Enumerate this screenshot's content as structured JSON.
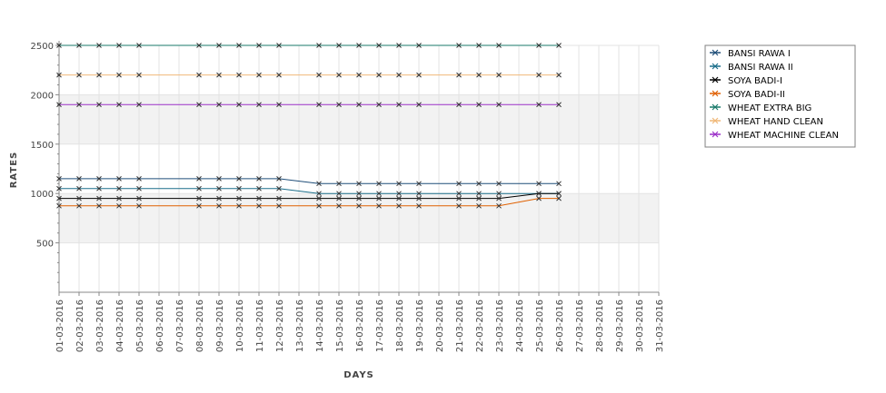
{
  "chart_data": {
    "type": "line",
    "title": "",
    "xlabel": "DAYS",
    "ylabel": "RATES",
    "ylim": [
      0,
      2500
    ],
    "yticks": [
      500,
      1000,
      1500,
      2000,
      2500
    ],
    "grid": true,
    "legend_position": "right",
    "categories": [
      "01-03-2016",
      "02-03-2016",
      "03-03-2016",
      "04-03-2016",
      "05-03-2016",
      "06-03-2016",
      "07-03-2016",
      "08-03-2016",
      "09-03-2016",
      "10-03-2016",
      "11-03-2016",
      "12-03-2016",
      "13-03-2016",
      "14-03-2016",
      "15-03-2016",
      "16-03-2016",
      "17-03-2016",
      "18-03-2016",
      "19-03-2016",
      "20-03-2016",
      "21-03-2016",
      "22-03-2016",
      "23-03-2016",
      "24-03-2016",
      "25-03-2016",
      "26-03-2016",
      "27-03-2016",
      "28-03-2016",
      "29-03-2016",
      "30-03-2016",
      "31-03-2016"
    ],
    "series": [
      {
        "name": "BANSI RAWA I",
        "color": "#1f4e79",
        "values": [
          1150,
          1150,
          1150,
          1150,
          1150,
          null,
          null,
          1150,
          1150,
          1150,
          1150,
          1150,
          null,
          1100,
          1100,
          1100,
          1100,
          1100,
          1100,
          null,
          1100,
          1100,
          1100,
          null,
          1100,
          1100,
          null,
          null,
          null,
          null,
          null
        ]
      },
      {
        "name": "BANSI RAWA II",
        "color": "#1b6e8a",
        "values": [
          1050,
          1050,
          1050,
          1050,
          1050,
          null,
          null,
          1050,
          1050,
          1050,
          1050,
          1050,
          null,
          1000,
          1000,
          1000,
          1000,
          1000,
          1000,
          null,
          1000,
          1000,
          1000,
          null,
          1000,
          1000,
          null,
          null,
          null,
          null,
          null
        ]
      },
      {
        "name": "SOYA BADI-I",
        "color": "#000000",
        "values": [
          950,
          950,
          950,
          950,
          950,
          null,
          null,
          950,
          950,
          950,
          950,
          950,
          null,
          950,
          950,
          950,
          950,
          950,
          950,
          null,
          950,
          950,
          950,
          null,
          1000,
          1000,
          null,
          null,
          null,
          null,
          null
        ]
      },
      {
        "name": "SOYA BADI-II",
        "color": "#e06000",
        "values": [
          875,
          875,
          875,
          875,
          875,
          null,
          null,
          875,
          875,
          875,
          875,
          875,
          null,
          875,
          875,
          875,
          875,
          875,
          875,
          null,
          875,
          875,
          875,
          null,
          950,
          950,
          null,
          null,
          null,
          null,
          null
        ]
      },
      {
        "name": "WHEAT EXTRA BIG",
        "color": "#1a7a6a",
        "values": [
          2500,
          2500,
          2500,
          2500,
          2500,
          null,
          null,
          2500,
          2500,
          2500,
          2500,
          2500,
          null,
          2500,
          2500,
          2500,
          2500,
          2500,
          2500,
          null,
          2500,
          2500,
          2500,
          null,
          2500,
          2500,
          null,
          null,
          null,
          null,
          null
        ]
      },
      {
        "name": "WHEAT HAND CLEAN",
        "color": "#f0b878",
        "values": [
          2200,
          2200,
          2200,
          2200,
          2200,
          null,
          null,
          2200,
          2200,
          2200,
          2200,
          2200,
          null,
          2200,
          2200,
          2200,
          2200,
          2200,
          2200,
          null,
          2200,
          2200,
          2200,
          null,
          2200,
          2200,
          null,
          null,
          null,
          null,
          null
        ]
      },
      {
        "name": "WHEAT MACHINE CLEAN",
        "color": "#9b30c8",
        "values": [
          1900,
          1900,
          1900,
          1900,
          1900,
          null,
          null,
          1900,
          1900,
          1900,
          1900,
          1900,
          null,
          1900,
          1900,
          1900,
          1900,
          1900,
          1900,
          null,
          1900,
          1900,
          1900,
          null,
          1900,
          1900,
          null,
          null,
          null,
          null,
          null
        ]
      }
    ]
  }
}
